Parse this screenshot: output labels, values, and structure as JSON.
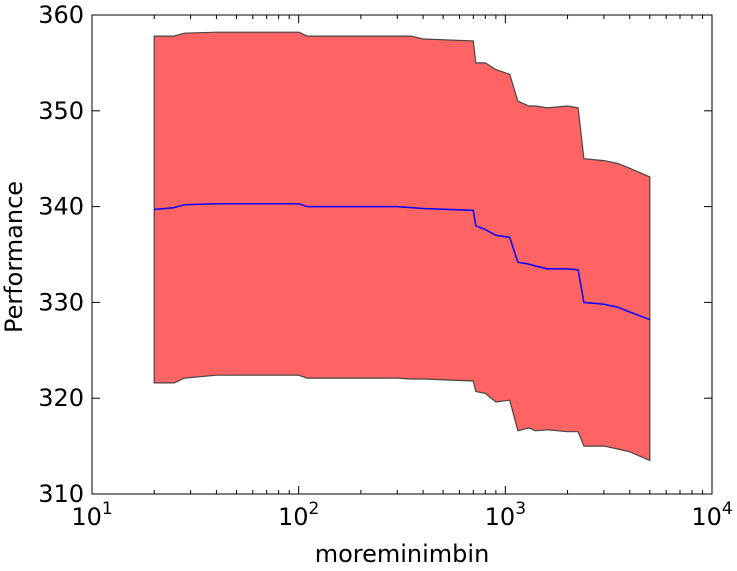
{
  "chart_data": {
    "type": "area",
    "title": "",
    "xlabel": "moreminimbin",
    "ylabel": "Performance",
    "xscale": "log",
    "xlim": [
      10,
      10000
    ],
    "ylim": [
      310,
      360
    ],
    "grid": false,
    "x_ticks": [
      {
        "value": 10,
        "base": "10",
        "exp": "1"
      },
      {
        "value": 100,
        "base": "10",
        "exp": "2"
      },
      {
        "value": 1000,
        "base": "10",
        "exp": "3"
      },
      {
        "value": 10000,
        "base": "10",
        "exp": "4"
      }
    ],
    "y_ticks": [
      310,
      320,
      330,
      340,
      350,
      360
    ],
    "colors": {
      "band_fill": "#ff6464",
      "band_edge": "#444444",
      "mean_line": "#0000ff"
    },
    "series": [
      {
        "role": "mean",
        "x": [
          20,
          25,
          28,
          40,
          60,
          100,
          110,
          200,
          300,
          350,
          400,
          700,
          720,
          800,
          900,
          1050,
          1150,
          1300,
          1400,
          1600,
          2000,
          2250,
          2400,
          3000,
          3500,
          4000,
          5000
        ],
        "y": [
          339.7,
          339.9,
          340.2,
          340.3,
          340.3,
          340.3,
          340.0,
          340.0,
          340.0,
          339.9,
          339.8,
          339.6,
          338.0,
          337.6,
          337.0,
          336.8,
          334.2,
          334.0,
          333.8,
          333.5,
          333.5,
          333.4,
          330.0,
          329.8,
          329.5,
          329.0,
          328.2
        ]
      },
      {
        "role": "upper",
        "x": [
          20,
          25,
          28,
          40,
          60,
          100,
          110,
          200,
          300,
          350,
          400,
          700,
          720,
          800,
          900,
          1050,
          1150,
          1300,
          1400,
          1600,
          2000,
          2250,
          2400,
          3000,
          3500,
          4000,
          5000
        ],
        "y": [
          357.8,
          357.8,
          358.1,
          358.2,
          358.2,
          358.2,
          357.8,
          357.8,
          357.8,
          357.8,
          357.5,
          357.3,
          355.0,
          355.0,
          354.3,
          353.8,
          351.0,
          350.5,
          350.5,
          350.3,
          350.5,
          350.3,
          345.0,
          344.8,
          344.5,
          344.0,
          343.1
        ]
      },
      {
        "role": "lower",
        "x": [
          20,
          25,
          28,
          40,
          60,
          100,
          110,
          200,
          300,
          350,
          400,
          700,
          720,
          800,
          900,
          1050,
          1150,
          1300,
          1400,
          1600,
          2000,
          2250,
          2400,
          3000,
          3500,
          4000,
          5000
        ],
        "y": [
          321.6,
          321.6,
          322.1,
          322.4,
          322.4,
          322.4,
          322.1,
          322.1,
          322.1,
          322.0,
          322.0,
          321.8,
          320.7,
          320.5,
          319.6,
          319.8,
          316.6,
          316.9,
          316.6,
          316.7,
          316.5,
          316.5,
          315.0,
          315.0,
          314.7,
          314.4,
          313.5
        ]
      }
    ]
  }
}
